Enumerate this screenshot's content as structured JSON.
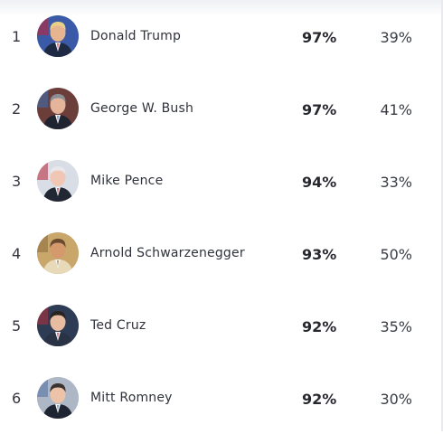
{
  "rows": [
    {
      "rank": "1",
      "name": "Donald Trump",
      "fame": "97%",
      "popularity": "39%",
      "avatar_icon": "donald-trump-avatar",
      "bg": "#3a5aa8",
      "skin": "#e6b48f",
      "hair": "#e8d089",
      "suit": "#1e2a44",
      "accent": "#c8202c"
    },
    {
      "rank": "2",
      "name": "George W. Bush",
      "fame": "97%",
      "popularity": "41%",
      "avatar_icon": "george-w-bush-avatar",
      "bg": "#6b3e3a",
      "skin": "#e4b59a",
      "hair": "#8a8f95",
      "suit": "#1f2430",
      "accent": "#3a6fb6"
    },
    {
      "rank": "3",
      "name": "Mike Pence",
      "fame": "94%",
      "popularity": "33%",
      "avatar_icon": "mike-pence-avatar",
      "bg": "#d9dde6",
      "skin": "#f0c7b4",
      "hair": "#e8e8ec",
      "suit": "#222734",
      "accent": "#b52030"
    },
    {
      "rank": "4",
      "name": "Arnold Schwarzenegger",
      "fame": "93%",
      "popularity": "50%",
      "avatar_icon": "arnold-schwarzenegger-avatar",
      "bg": "#c9a66a",
      "skin": "#d49a6e",
      "hair": "#6a4a2e",
      "suit": "#e8d9b8",
      "accent": "#8a6a3a"
    },
    {
      "rank": "5",
      "name": "Ted Cruz",
      "fame": "92%",
      "popularity": "35%",
      "avatar_icon": "ted-cruz-avatar",
      "bg": "#2e3b55",
      "skin": "#e8bca0",
      "hair": "#2a2420",
      "suit": "#2a3346",
      "accent": "#b8323a"
    },
    {
      "rank": "6",
      "name": "Mitt Romney",
      "fame": "92%",
      "popularity": "30%",
      "avatar_icon": "mitt-romney-avatar",
      "bg": "#aeb7c6",
      "skin": "#ecc3a8",
      "hair": "#3a3330",
      "suit": "#1f2433",
      "accent": "#4e6fa0"
    }
  ]
}
